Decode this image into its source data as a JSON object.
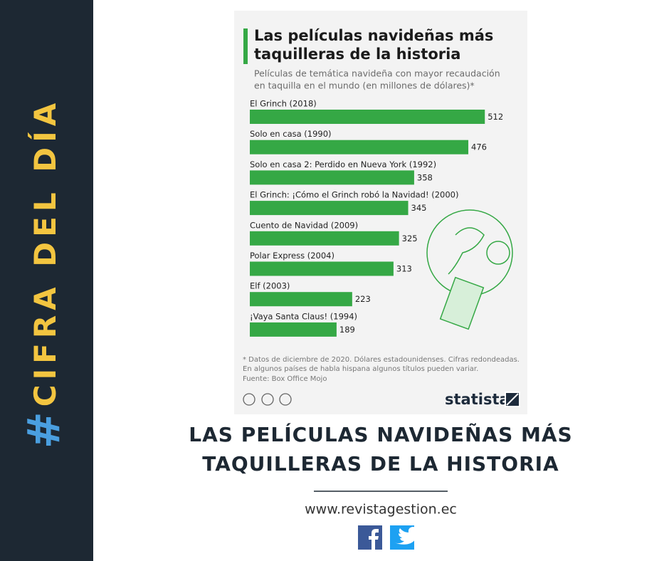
{
  "sidebar": {
    "hashtag": "#",
    "label": "CIFRA DEL DÍA"
  },
  "chart_data": {
    "type": "bar",
    "title": [
      "Las películas navideñas más",
      "taquilleras de la historia"
    ],
    "subtitle": [
      "Películas de temática navideña con mayor recaudación",
      "en taquilla en el mundo (en millones de dólares)*"
    ],
    "categories": [
      "El Grinch (2018)",
      "Solo en casa (1990)",
      "Solo en casa 2: Perdido en Nueva York (1992)",
      "El Grinch: ¡Cómo el Grinch robó la Navidad! (2000)",
      "Cuento de Navidad (2009)",
      "Polar Express (2004)",
      "Elf (2003)",
      "¡Vaya Santa Claus! (1994)"
    ],
    "values": [
      512,
      476,
      358,
      345,
      325,
      313,
      223,
      189
    ],
    "color": "#35a845",
    "footnotes": [
      "* Datos de diciembre de 2020. Dólares estadounidenses. Cifras redondeadas.",
      "En algunos países de habla hispana algunos títulos pueden variar.",
      "Fuente: Box Office Mojo"
    ],
    "brand": "statista"
  },
  "headline": [
    "LAS PELÍCULAS NAVIDEÑAS MÁS",
    "TAQUILLERAS DE LA HISTORIA"
  ],
  "website": "www.revistagestion.ec"
}
